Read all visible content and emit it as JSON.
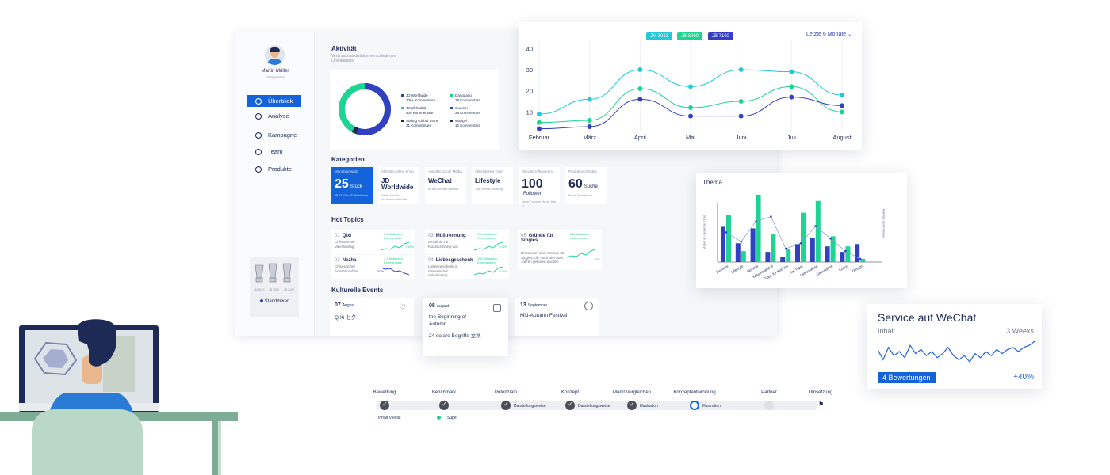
{
  "sidebar": {
    "user_name": "Martin Müller",
    "user_role": "Designleitor",
    "items": [
      {
        "label": "Überblick",
        "active": true
      },
      {
        "label": "Analyse"
      },
      {
        "label": "Kampagne"
      },
      {
        "label": "Team"
      },
      {
        "label": "Produkte"
      }
    ],
    "product_labels": [
      "JM 3013",
      "JB 3060",
      "JB 7192"
    ],
    "product_name": "Standmixer"
  },
  "activity": {
    "title": "Aktivität",
    "subtitle": "Verbrauchsaktivität in verschiedenen Onlineshops",
    "legend": [
      {
        "name": "JD Worldwide",
        "value": "300+ Kommentare",
        "color": "#3340c2"
      },
      {
        "name": "Tmall Global",
        "value": "400 Kommentare",
        "color": "#1ed492"
      },
      {
        "name": "Suning Global Store",
        "value": "21 Kommentare",
        "color": "#1d2a55"
      },
      {
        "name": "Dangdang",
        "value": "38 Kommentare",
        "color": "#1ed492"
      },
      {
        "name": "Guomei",
        "value": "28 Kommentare",
        "color": "#3340c2"
      },
      {
        "name": "Wangyi",
        "value": "12 Kommentare",
        "color": "#1d2a55"
      }
    ]
  },
  "categories": {
    "title": "Kategorien",
    "cards": [
      {
        "label": "Monatsumsatz",
        "value": "25",
        "unit": "Stück",
        "sub": "JB 7192 in JD Worldwide"
      },
      {
        "label": "Aktivität online Shop",
        "value": "JD Worldwide",
        "sub": "Ist die höchste Verbrauchsaktivität"
      },
      {
        "label": "Aktivität Social Media",
        "value": "WeChat",
        "sub": "Ist die höchste aktivität"
      },
      {
        "label": "Aktivität Hot Topic",
        "value": "Lifestyle",
        "sub": "Top Thema Trending"
      },
      {
        "label": "Aktivität Influencers",
        "value": "100",
        "unit": "Follower",
        "sub": "Neue Follower Heute Kan Li"
      },
      {
        "label": "Produktsuchindex",
        "value": "60",
        "unit": "Suche",
        "sub": "Braun Standmixer"
      }
    ]
  },
  "hot_topics": {
    "title": "Hot Topics",
    "items": [
      {
        "num": "01",
        "title": "Qixi",
        "desc": "Chinesischer Valentinstag",
        "metric": "5,1 Milliarden Kommentare",
        "change": "+15%"
      },
      {
        "num": "02",
        "title": "Nezha",
        "desc": "Chinesischer Animationsfilm",
        "metric": "3,3 Milliarden Kommentare",
        "change": "-20%"
      },
      {
        "num": "03",
        "title": "Mülltrennung",
        "desc": "Richtlinie zur Klassifizierung von",
        "metric": "100 Milliarden Kommentare",
        "change": "+15%"
      },
      {
        "num": "04",
        "title": "Liebesgeschenk",
        "desc": "Liebesgeschenk in chinesischer Valentinstag",
        "metric": "100 Milliarden Kommentare",
        "change": "+12%"
      },
      {
        "num": "05",
        "title": "Gründe für Singles",
        "desc": "Diskussion über Gründe für Singles, die nach den 90er Jahren geboren wurden",
        "metric": "800 Milliarden Kommentare",
        "change": "+9%"
      }
    ]
  },
  "events": {
    "title": "Kulturelle Events",
    "items": [
      {
        "day": "07",
        "month": "August",
        "line1": "QiXi 七夕",
        "line2": ""
      },
      {
        "day": "08",
        "month": "August",
        "line1": "the Beginning of Autumn",
        "line2": "24 solare Begriffe 立秋"
      },
      {
        "day": "13",
        "month": "September",
        "line1": "Mid-Autumn Festival",
        "line2": ""
      }
    ]
  },
  "line_chart": {
    "filter_label": "Letzte 6 Monate",
    "chart_data": {
      "type": "line",
      "x": [
        "Februar",
        "März",
        "April",
        "Mai",
        "Juni",
        "Juli",
        "August"
      ],
      "yticks": [
        10,
        20,
        30,
        40
      ],
      "ylim": [
        0,
        45
      ],
      "legend_position": "top",
      "series": [
        {
          "name": "JM 3013",
          "color": "#22c9d9",
          "values": [
            9,
            16,
            30,
            22,
            30,
            29,
            18
          ]
        },
        {
          "name": "JB 3060",
          "color": "#1ed492",
          "values": [
            5,
            6,
            21,
            12,
            15,
            22,
            10
          ]
        },
        {
          "name": "JB 7192",
          "color": "#3340c2",
          "values": [
            2,
            3,
            16,
            8,
            8,
            17,
            13
          ]
        }
      ]
    }
  },
  "bar_chart": {
    "title": "Thema",
    "ylabel_left": "Anteil an gesamte Inhalt",
    "ylabel_right": "Aktivität des Follower",
    "chart_data": {
      "type": "bar",
      "categories": [
        "Rezepte",
        "Lifestyle",
        "Aktivität",
        "Wissensartikel",
        "Tipps für Küchen",
        "Hot Topic",
        "Leben teilen",
        "Gesundheit",
        "Kultur",
        "Design"
      ],
      "series": [
        {
          "color": "#3340c2",
          "values": [
            45,
            24,
            43,
            13,
            7,
            23,
            31,
            20,
            13,
            23
          ]
        },
        {
          "color": "#1ed492",
          "values": [
            60,
            14,
            86,
            36,
            16,
            63,
            78,
            33,
            20,
            4
          ]
        }
      ],
      "line_values": [
        38,
        26,
        52,
        58,
        17,
        24,
        46,
        30,
        14,
        4
      ],
      "ylim": [
        0,
        100
      ]
    }
  },
  "wechat": {
    "title": "Service auf WeChat",
    "label_left": "Inhalt",
    "label_right": "3 Weeks",
    "badge": "4 Bewertungen",
    "change": "+40%",
    "chart_data": {
      "type": "line",
      "values": [
        6,
        1,
        7,
        3,
        5,
        2,
        8,
        4,
        6,
        3,
        5,
        2,
        4,
        7,
        3,
        1,
        3,
        0,
        4,
        2,
        5,
        3,
        6,
        4,
        6,
        7,
        5,
        7,
        8,
        10
      ],
      "color": "#1f64d8"
    }
  },
  "stepper": {
    "steps": [
      {
        "label": "Bewertung",
        "state": "done",
        "sub": "Inhalt Vielfalt"
      },
      {
        "label": "Benchmark",
        "state": "done",
        "sub": "Super"
      },
      {
        "label": "Potenzialn",
        "state": "done",
        "sub": "Darstellungsweise"
      },
      {
        "label": "Konzept",
        "state": "done",
        "sub": "Darstellungsweise"
      },
      {
        "label": "Markt Vergleichen",
        "state": "done",
        "sub": "Illustration"
      },
      {
        "label": "Konzeptentwicklung",
        "state": "active",
        "sub": "Illustration"
      },
      {
        "label": "Partner",
        "state": "todo",
        "sub": ""
      },
      {
        "label": "Umsetzung",
        "state": "flag",
        "sub": ""
      }
    ]
  },
  "colors": {
    "primary": "#1463d8",
    "green": "#1ed492",
    "cyan": "#22c9d9",
    "indigo": "#3340c2",
    "navy": "#1d2a55"
  }
}
